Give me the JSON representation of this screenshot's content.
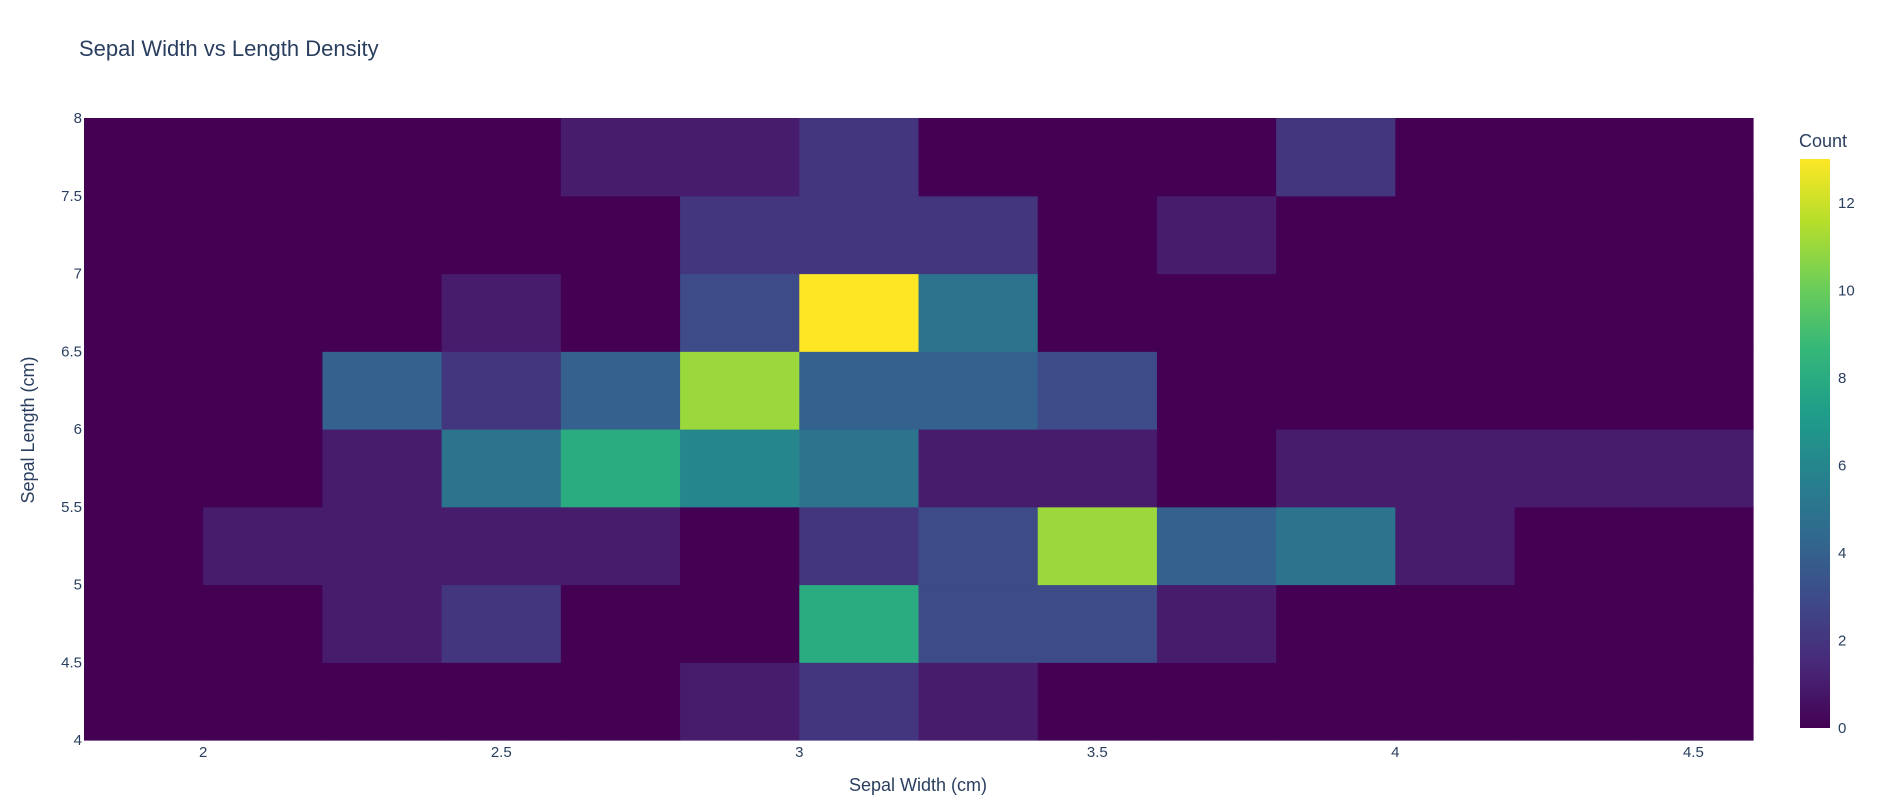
{
  "chart_data": {
    "type": "heatmap",
    "title": "Sepal Width vs Length Density",
    "xlabel": "Sepal Width (cm)",
    "ylabel": "Sepal Length (cm)",
    "xlim": [
      1.8,
      4.6
    ],
    "ylim": [
      4,
      8
    ],
    "x_ticks": [
      2,
      2.5,
      3,
      3.5,
      4,
      4.5
    ],
    "y_ticks": [
      4,
      4.5,
      5,
      5.5,
      6,
      6.5,
      7,
      7.5,
      8
    ],
    "x_bin_edges": [
      1.8,
      2.0,
      2.2,
      2.4,
      2.6,
      2.8,
      3.0,
      3.2,
      3.4,
      3.6,
      3.8,
      4.0,
      4.2,
      4.4,
      4.6
    ],
    "y_bin_edges": [
      4.0,
      4.5,
      5.0,
      5.5,
      6.0,
      6.5,
      7.0,
      7.5,
      8.0
    ],
    "z": [
      [
        0,
        0,
        0,
        0,
        0,
        1,
        2,
        1,
        0,
        0,
        0,
        0,
        0,
        0
      ],
      [
        0,
        0,
        1,
        2,
        0,
        0,
        8,
        3,
        3,
        1,
        0,
        0,
        0,
        0
      ],
      [
        0,
        1,
        1,
        1,
        1,
        0,
        2,
        3,
        11,
        4,
        5,
        1,
        0,
        0
      ],
      [
        0,
        0,
        1,
        5,
        8,
        6,
        5,
        1,
        1,
        0,
        1,
        1,
        1,
        1
      ],
      [
        0,
        0,
        4,
        2,
        4,
        11,
        4,
        4,
        3,
        0,
        0,
        0,
        0,
        0
      ],
      [
        0,
        0,
        0,
        1,
        0,
        3,
        13,
        5,
        0,
        0,
        0,
        0,
        0,
        0
      ],
      [
        0,
        0,
        0,
        0,
        0,
        2,
        2,
        2,
        0,
        1,
        0,
        0,
        0,
        0
      ],
      [
        0,
        0,
        0,
        0,
        1,
        1,
        2,
        0,
        0,
        0,
        2,
        0,
        0,
        0
      ]
    ],
    "colorscale": "viridis",
    "zmin": 0,
    "zmax": 13,
    "colorbar": {
      "title": "Count",
      "ticks": [
        0,
        2,
        4,
        6,
        8,
        10,
        12
      ]
    },
    "grid": false,
    "legend": "colorbar-right"
  }
}
